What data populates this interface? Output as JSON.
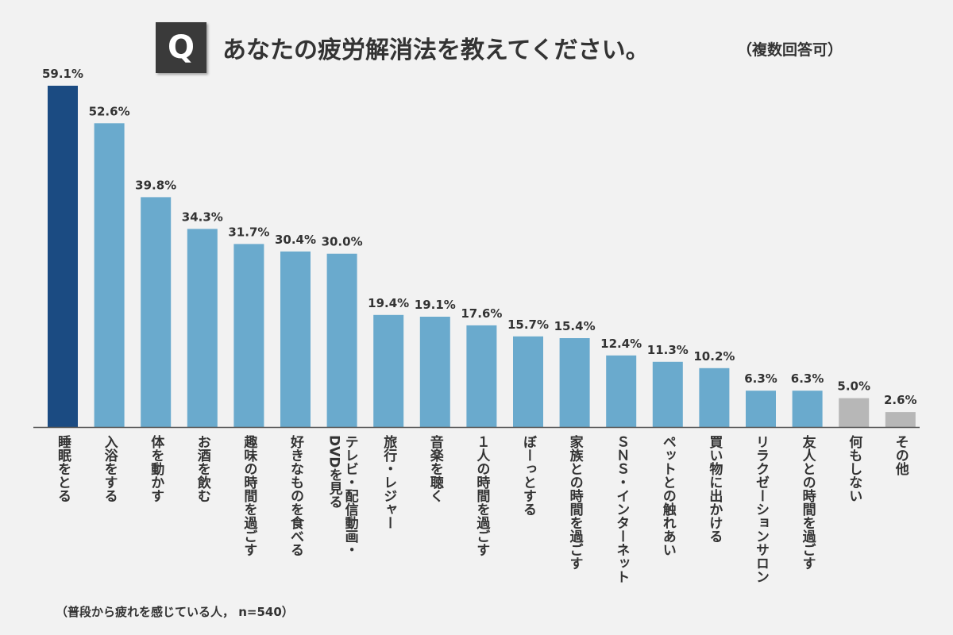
{
  "question_mark": "Q",
  "title": "あなたの疲労解消法を教えてください。",
  "title_note": "（複数回答可）",
  "footnote": "（普段から疲れを感じている人， n=540）",
  "colors": {
    "highlight": "#1b4b82",
    "bar": "#6aaacd",
    "muted": "#b7b7b7",
    "axis": "#555555"
  },
  "chart_data": {
    "type": "bar",
    "title": "あなたの疲労解消法を教えてください。",
    "xlabel": "",
    "ylabel": "",
    "value_suffix": "%",
    "categories": [
      "睡眠をとる",
      "入浴をする",
      "体を動かす",
      "お酒を飲む",
      "趣味の時間を過ごす",
      "好きなものを食べる",
      "テレビ・配信動画・DVDを見る",
      "旅行・レジャー",
      "音楽を聴く",
      "１人の時間を過ごす",
      "ぼーっとする",
      "家族との時間を過ごす",
      "ＳＮＳ・インターネット",
      "ペットとの触れあい",
      "買い物に出かける",
      "リラクゼーションサロン",
      "友人との時間を過ごす",
      "何もしない",
      "その他"
    ],
    "label_columns": [
      [
        "睡眠をとる"
      ],
      [
        "入浴をする"
      ],
      [
        "体を動かす"
      ],
      [
        "お酒を飲む"
      ],
      [
        "趣味の時間を過ごす"
      ],
      [
        "好きなものを食べる"
      ],
      [
        "テレビ・配信動画・",
        "DVDを見る"
      ],
      [
        "旅行・レジャー"
      ],
      [
        "音楽を聴く"
      ],
      [
        "１人の時間を過ごす"
      ],
      [
        "ぼーっとする"
      ],
      [
        "家族との時間を過ごす"
      ],
      [
        "ＳＮＳ・インターネット"
      ],
      [
        "ペットとの触れあい"
      ],
      [
        "買い物に出かける"
      ],
      [
        "リラクゼーションサロン"
      ],
      [
        "友人との時間を過ごす"
      ],
      [
        "何もしない"
      ],
      [
        "その他"
      ]
    ],
    "values": [
      59.1,
      52.6,
      39.8,
      34.3,
      31.7,
      30.4,
      30.0,
      19.4,
      19.1,
      17.6,
      15.7,
      15.4,
      12.4,
      11.3,
      10.2,
      6.3,
      6.3,
      5.0,
      2.6
    ],
    "value_labels": [
      "59.1%",
      "52.6%",
      "39.8%",
      "34.3%",
      "31.7%",
      "30.4%",
      "30.0%",
      "19.4%",
      "19.1%",
      "17.6%",
      "15.7%",
      "15.4%",
      "12.4%",
      "11.3%",
      "10.2%",
      "6.3%",
      "6.3%",
      "5.0%",
      "2.6%"
    ],
    "bar_color_groups": [
      "highlight",
      "bar",
      "bar",
      "bar",
      "bar",
      "bar",
      "bar",
      "bar",
      "bar",
      "bar",
      "bar",
      "bar",
      "bar",
      "bar",
      "bar",
      "bar",
      "bar",
      "muted",
      "muted"
    ],
    "ylim": [
      0,
      62
    ],
    "grid": false,
    "legend": "none"
  }
}
